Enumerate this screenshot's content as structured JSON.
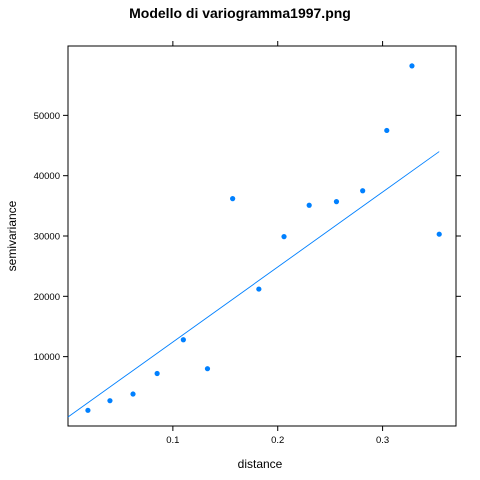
{
  "chart_data": {
    "type": "scatter",
    "title": "Modello di variogramma1997.png",
    "xlabel": "distance",
    "ylabel": "semivariance",
    "xlim": [
      0,
      0.37
    ],
    "ylim": [
      -1500,
      61500
    ],
    "xticks": [
      {
        "value": 0.1,
        "label": "0.1"
      },
      {
        "value": 0.2,
        "label": "0.2"
      },
      {
        "value": 0.3,
        "label": "0.3"
      }
    ],
    "yticks": [
      {
        "value": 10000,
        "label": "10000"
      },
      {
        "value": 20000,
        "label": "20000"
      },
      {
        "value": 30000,
        "label": "30000"
      },
      {
        "value": 40000,
        "label": "40000"
      },
      {
        "value": 50000,
        "label": "50000"
      }
    ],
    "grid": false,
    "legend": "none",
    "points": [
      {
        "x": 0.019,
        "y": 1100
      },
      {
        "x": 0.04,
        "y": 2700
      },
      {
        "x": 0.062,
        "y": 3800
      },
      {
        "x": 0.085,
        "y": 7200
      },
      {
        "x": 0.11,
        "y": 12800
      },
      {
        "x": 0.133,
        "y": 8000
      },
      {
        "x": 0.157,
        "y": 36200
      },
      {
        "x": 0.182,
        "y": 21200
      },
      {
        "x": 0.206,
        "y": 29900
      },
      {
        "x": 0.23,
        "y": 35100
      },
      {
        "x": 0.256,
        "y": 35700
      },
      {
        "x": 0.281,
        "y": 37500
      },
      {
        "x": 0.304,
        "y": 47500
      },
      {
        "x": 0.328,
        "y": 58200
      },
      {
        "x": 0.354,
        "y": 30300
      }
    ],
    "model_line": {
      "x": [
        0.0,
        0.354
      ],
      "y": 0,
      "y_end": 44000
    },
    "colors": {
      "points": "#0080ff",
      "line": "#0080ff",
      "axes": "#000000"
    }
  }
}
